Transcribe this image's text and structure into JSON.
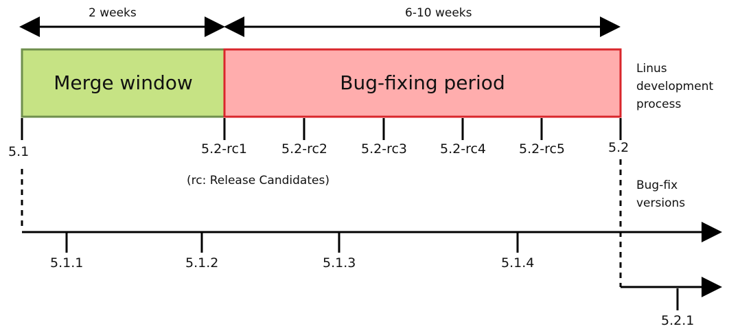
{
  "durations": {
    "merge": "2 weeks",
    "bugfix": "6-10 weeks"
  },
  "boxes": {
    "merge_window": "Merge window",
    "bug_fixing": "Bug-fixing period"
  },
  "side_labels": {
    "process_line1": "Linus",
    "process_line2": "development",
    "process_line3": "process",
    "bugfix_line1": "Bug-fix",
    "bugfix_line2": "versions"
  },
  "dev_ticks": [
    "5.1",
    "5.2-rc1",
    "5.2-rc2",
    "5.2-rc3",
    "5.2-rc4",
    "5.2-rc5",
    "5.2"
  ],
  "note": "(rc: Release Candidates)",
  "stable_ticks": [
    "5.1.1",
    "5.1.2",
    "5.1.3",
    "5.1.4"
  ],
  "stable2_ticks": [
    "5.2.1"
  ],
  "colors": {
    "merge_fill": "#c6e384",
    "merge_stroke": "#6f8f4d",
    "bug_fill": "#ffadad",
    "bug_stroke": "#d9262b",
    "line": "#000000"
  }
}
